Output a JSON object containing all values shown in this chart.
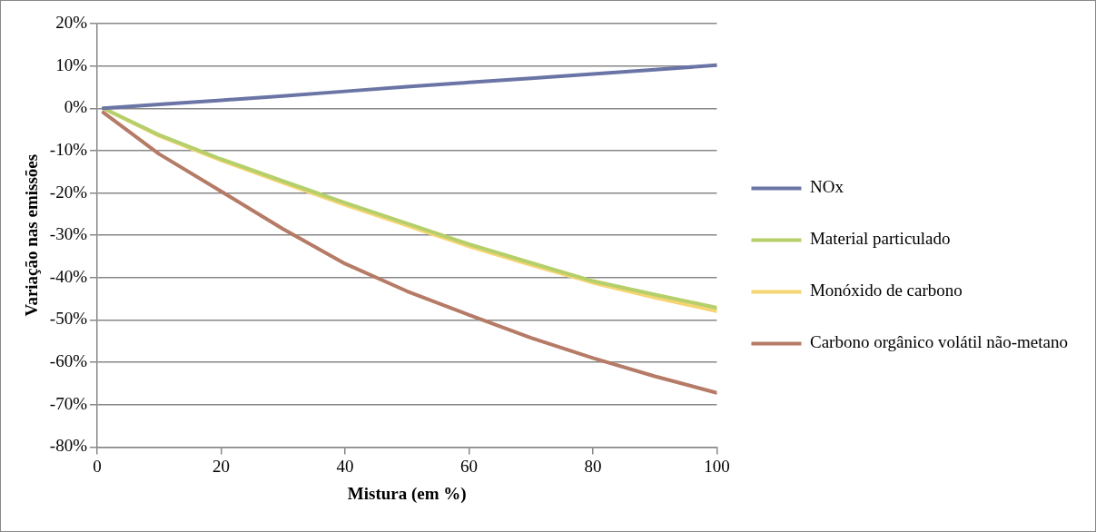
{
  "chart_data": {
    "type": "line",
    "xlabel": "Mistura (em %)",
    "ylabel": "Variação nas emissões",
    "xlim": [
      0,
      100
    ],
    "xticks": [
      0,
      20,
      40,
      60,
      80,
      100
    ],
    "ylim": [
      -80,
      20
    ],
    "yticks": [
      {
        "value": -80,
        "label": "-80%"
      },
      {
        "value": -70,
        "label": "-70%"
      },
      {
        "value": -60,
        "label": "-60%"
      },
      {
        "value": -50,
        "label": "-50%"
      },
      {
        "value": -40,
        "label": "-40%"
      },
      {
        "value": -30,
        "label": "-30%"
      },
      {
        "value": -20,
        "label": "-20%"
      },
      {
        "value": -10,
        "label": "-10%"
      },
      {
        "value": 0,
        "label": "0%"
      },
      {
        "value": 10,
        "label": "10%"
      },
      {
        "value": 20,
        "label": "20%"
      }
    ],
    "x": [
      1,
      10,
      20,
      30,
      40,
      50,
      60,
      70,
      80,
      90,
      100
    ],
    "grid": "y",
    "legend": "right",
    "marker": "none",
    "line_style": "solid",
    "series": [
      {
        "name": "NOx",
        "color": "#6a75a6",
        "values": [
          0,
          0.9,
          1.9,
          2.9,
          4,
          5.1,
          6.1,
          7.1,
          8.1,
          9.1,
          10.2
        ]
      },
      {
        "name": "Material particulado",
        "color": "#b5cf6b",
        "values": [
          0,
          -6.3,
          -12,
          -17.2,
          -22.3,
          -27.2,
          -32.1,
          -36.5,
          -40.8,
          -44,
          -47.1
        ]
      },
      {
        "name": "Monóxido de carbono",
        "color": "#f6d472",
        "values": [
          0,
          -6.5,
          -12.3,
          -17.6,
          -22.8,
          -27.7,
          -32.6,
          -37,
          -41.2,
          -44.7,
          -47.9
        ]
      },
      {
        "name": "Carbono orgânico volátil não-metano",
        "color": "#b57b66",
        "values": [
          -1,
          -10.8,
          -19.6,
          -28.5,
          -36.7,
          -43.2,
          -48.8,
          -54.2,
          -59,
          -63.3,
          -67.2
        ]
      }
    ]
  }
}
